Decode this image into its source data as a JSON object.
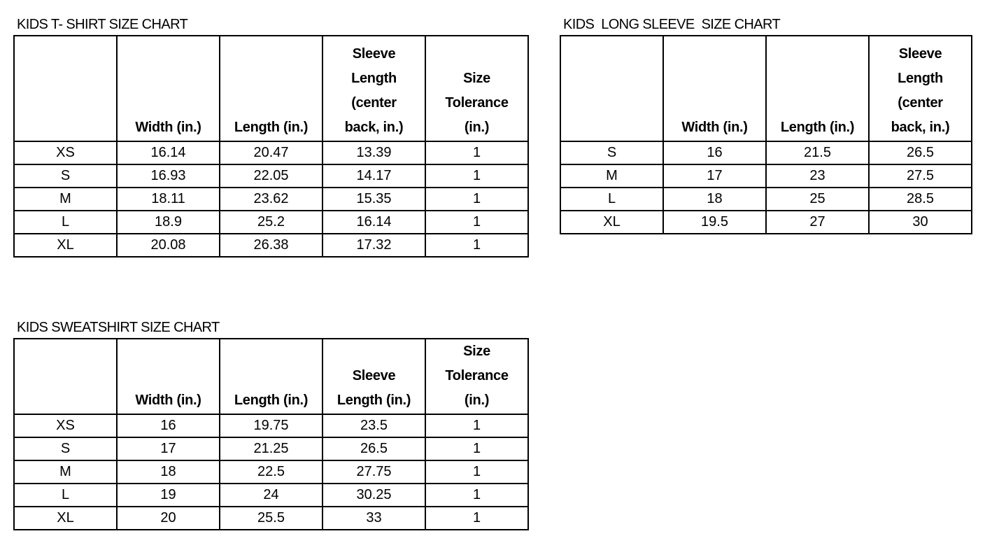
{
  "tables": [
    {
      "title": "KIDS T- SHIRT SIZE CHART",
      "headers": [
        "",
        "Width (in.)",
        "Length (in.)",
        "Sleeve\nLength\n(center\nback, in.)",
        "Size\nTolerance\n(in.)"
      ],
      "rows": [
        [
          "XS",
          "16.14",
          "20.47",
          "13.39",
          "1"
        ],
        [
          "S",
          "16.93",
          "22.05",
          "14.17",
          "1"
        ],
        [
          "M",
          "18.11",
          "23.62",
          "15.35",
          "1"
        ],
        [
          "L",
          "18.9",
          "25.2",
          "16.14",
          "1"
        ],
        [
          "XL",
          "20.08",
          "26.38",
          "17.32",
          "1"
        ]
      ]
    },
    {
      "title": "KIDS  LONG SLEEVE  SIZE CHART",
      "headers": [
        "",
        "Width (in.)",
        "Length (in.)",
        "Sleeve\nLength\n(center\nback, in.)"
      ],
      "rows": [
        [
          "S",
          "16",
          "21.5",
          "26.5"
        ],
        [
          "M",
          "17",
          "23",
          "27.5"
        ],
        [
          "L",
          "18",
          "25",
          "28.5"
        ],
        [
          "XL",
          "19.5",
          "27",
          "30"
        ]
      ]
    },
    {
      "title": "KIDS SWEATSHIRT SIZE CHART",
      "headers": [
        "",
        "Width (in.)",
        "Length (in.)",
        "Sleeve\nLength (in.)",
        "Size\nTolerance\n(in.)"
      ],
      "rows": [
        [
          "XS",
          "16",
          "19.75",
          "23.5",
          "1"
        ],
        [
          "S",
          "17",
          "21.25",
          "26.5",
          "1"
        ],
        [
          "M",
          "18",
          "22.5",
          "27.75",
          "1"
        ],
        [
          "L",
          "19",
          "24",
          "30.25",
          "1"
        ],
        [
          "XL",
          "20",
          "25.5",
          "33",
          "1"
        ]
      ]
    }
  ]
}
